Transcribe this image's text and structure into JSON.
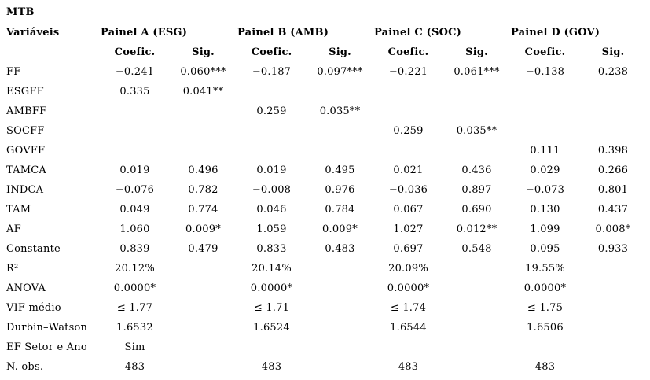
{
  "title": "MTB",
  "colors": {
    "background": "#ffffff",
    "text": "#000000"
  },
  "table": {
    "variables_header": "Variáveis",
    "panels": [
      "Painel A (ESG)",
      "Painel B (AMB)",
      "Painel C (SOC)",
      "Painel D (GOV)"
    ],
    "subheaders": {
      "coefic": "Coefic.",
      "sig": "Sig."
    },
    "rows": [
      {
        "label": "FF",
        "cells": [
          "−0.241",
          "0.060***",
          "−0.187",
          "0.097***",
          "−0.221",
          "0.061***",
          "−0.138",
          "0.238"
        ]
      },
      {
        "label": "ESGFF",
        "cells": [
          "0.335",
          "0.041**",
          "",
          "",
          "",
          "",
          "",
          ""
        ]
      },
      {
        "label": "AMBFF",
        "cells": [
          "",
          "",
          "0.259",
          "0.035**",
          "",
          "",
          "",
          ""
        ]
      },
      {
        "label": "SOCFF",
        "cells": [
          "",
          "",
          "",
          "",
          "0.259",
          "0.035**",
          "",
          ""
        ]
      },
      {
        "label": "GOVFF",
        "cells": [
          "",
          "",
          "",
          "",
          "",
          "",
          "0.111",
          "0.398"
        ]
      },
      {
        "label": "TAMCA",
        "cells": [
          "0.019",
          "0.496",
          "0.019",
          "0.495",
          "0.021",
          "0.436",
          "0.029",
          "0.266"
        ]
      },
      {
        "label": "INDCA",
        "cells": [
          "−0.076",
          "0.782",
          "−0.008",
          "0.976",
          "−0.036",
          "0.897",
          "−0.073",
          "0.801"
        ]
      },
      {
        "label": "TAM",
        "cells": [
          "0.049",
          "0.774",
          "0.046",
          "0.784",
          "0.067",
          "0.690",
          "0.130",
          "0.437"
        ]
      },
      {
        "label": "AF",
        "cells": [
          "1.060",
          "0.009*",
          "1.059",
          "0.009*",
          "1.027",
          "0.012**",
          "1.099",
          "0.008*"
        ]
      },
      {
        "label": "Constante",
        "cells": [
          "0.839",
          "0.479",
          "0.833",
          "0.483",
          "0.697",
          "0.548",
          "0.095",
          "0.933"
        ]
      },
      {
        "label": "R²",
        "cells": [
          "20.12%",
          "",
          "20.14%",
          "",
          "20.09%",
          "",
          "19.55%",
          ""
        ]
      },
      {
        "label": "ANOVA",
        "cells": [
          "0.0000*",
          "",
          "0.0000*",
          "",
          "0.0000*",
          "",
          "0.0000*",
          ""
        ]
      },
      {
        "label": "VIF médio",
        "cells": [
          "≤ 1.77",
          "",
          "≤ 1.71",
          "",
          "≤ 1.74",
          "",
          "≤ 1.75",
          ""
        ]
      },
      {
        "label": "Durbin–Watson",
        "cells": [
          "1.6532",
          "",
          "1.6524",
          "",
          "1.6544",
          "",
          "1.6506",
          ""
        ]
      },
      {
        "label": "EF Setor e Ano",
        "cells": [
          "Sim",
          "",
          "",
          "",
          "",
          "",
          "",
          ""
        ]
      },
      {
        "label": "N. obs.",
        "cells": [
          "483",
          "",
          "483",
          "",
          "483",
          "",
          "483",
          ""
        ]
      }
    ]
  }
}
